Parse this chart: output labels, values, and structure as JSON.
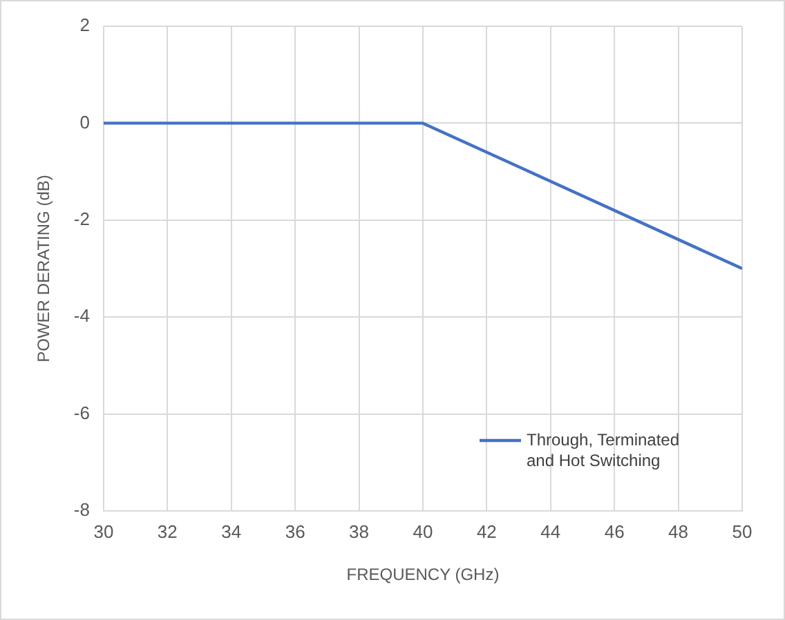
{
  "chart_data": {
    "type": "line",
    "xlabel": "FREQUENCY (GHz)",
    "ylabel": "POWER DERATING (dB)",
    "x": [
      30,
      40,
      50
    ],
    "series": [
      {
        "name": "Through, Terminated and Hot Switching",
        "color": "#4472c4",
        "values": [
          0,
          0,
          -3
        ]
      }
    ],
    "xlim": [
      30,
      50
    ],
    "xticks": [
      30,
      32,
      34,
      36,
      38,
      40,
      42,
      44,
      46,
      48,
      50
    ],
    "ylim": [
      -8,
      2
    ],
    "yticks": [
      -8,
      -6,
      -4,
      -2,
      0,
      2
    ],
    "grid": true,
    "legend": "bottom right",
    "marker": "none",
    "line_style": "solid"
  }
}
